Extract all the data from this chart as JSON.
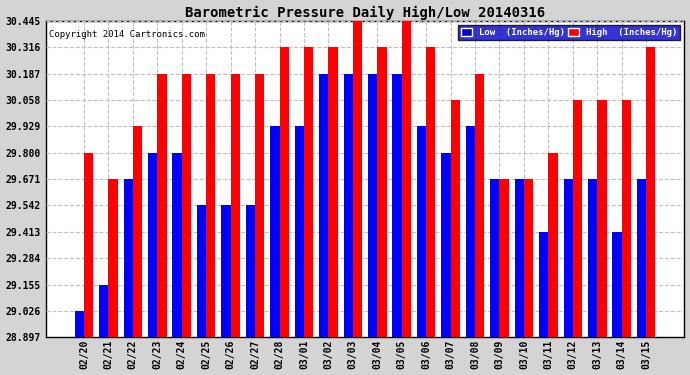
{
  "title": "Barometric Pressure Daily High/Low 20140316",
  "copyright": "Copyright 2014 Cartronics.com",
  "dates": [
    "02/20",
    "02/21",
    "02/22",
    "02/23",
    "02/24",
    "02/25",
    "02/26",
    "02/27",
    "02/28",
    "03/01",
    "03/02",
    "03/03",
    "03/04",
    "03/05",
    "03/06",
    "03/07",
    "03/08",
    "03/09",
    "03/10",
    "03/11",
    "03/12",
    "03/13",
    "03/14",
    "03/15"
  ],
  "low": [
    29.026,
    29.155,
    29.671,
    29.8,
    29.8,
    29.542,
    29.542,
    29.542,
    29.929,
    29.929,
    30.187,
    30.187,
    30.187,
    30.187,
    29.929,
    29.8,
    29.929,
    29.671,
    29.671,
    29.413,
    29.671,
    29.671,
    29.413,
    29.671
  ],
  "high": [
    29.8,
    29.671,
    29.929,
    30.187,
    30.187,
    30.187,
    30.187,
    30.187,
    30.316,
    30.316,
    30.316,
    30.445,
    30.316,
    30.445,
    30.316,
    30.058,
    30.187,
    29.671,
    29.671,
    29.8,
    30.058,
    30.058,
    30.058,
    30.316
  ],
  "ylim": [
    28.897,
    30.445
  ],
  "yticks": [
    28.897,
    29.026,
    29.155,
    29.284,
    29.413,
    29.542,
    29.671,
    29.8,
    29.929,
    30.058,
    30.187,
    30.316,
    30.445
  ],
  "fig_bg_color": "#d4d4d4",
  "plot_bg_color": "#ffffff",
  "low_color": "#0000ff",
  "high_color": "#ff0000",
  "grid_color": "#c0c0c0",
  "title_color": "#000000",
  "copyright_color": "#000000",
  "legend_low_bg": "#0000cc",
  "legend_high_bg": "#ff0000",
  "figwidth": 6.9,
  "figheight": 3.75,
  "dpi": 100
}
